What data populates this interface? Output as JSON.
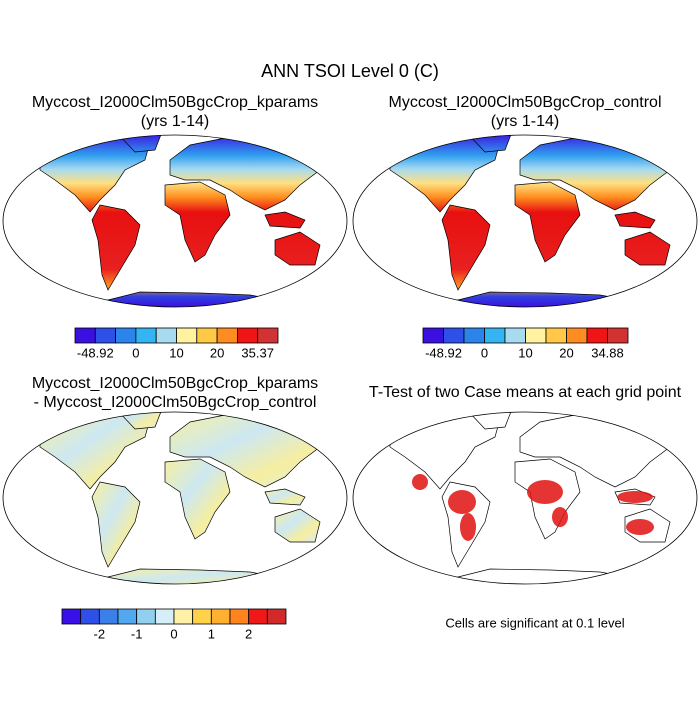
{
  "title": "ANN TSOI Level 0 (C)",
  "panels": [
    {
      "title": [
        "Myccost_I2000Clm50BgcCrop_kparams",
        "(yrs 1-14)"
      ],
      "colorbar": {
        "colors": [
          "#3a10e0",
          "#2f50e6",
          "#2a84ea",
          "#34b4f2",
          "#a8daf0",
          "#fff2a0",
          "#ffc846",
          "#ff8c22",
          "#f01414",
          "#d23232"
        ],
        "labels": [
          "-48.92",
          "0",
          "10",
          "20",
          "35.37"
        ]
      }
    },
    {
      "title": [
        "Myccost_I2000Clm50BgcCrop_control",
        "(yrs 1-14)"
      ],
      "colorbar": {
        "colors": [
          "#3a10e0",
          "#2f50e6",
          "#2a84ea",
          "#34b4f2",
          "#a8daf0",
          "#fff2a0",
          "#ffc846",
          "#ff8c22",
          "#f01414",
          "#d23232"
        ],
        "labels": [
          "-48.92",
          "0",
          "10",
          "20",
          "34.88"
        ]
      }
    },
    {
      "title": [
        "Myccost_I2000Clm50BgcCrop_kparams",
        "- Myccost_I2000Clm50BgcCrop_control"
      ],
      "colorbar": {
        "colors": [
          "#3a10e8",
          "#2e50e8",
          "#3a80e8",
          "#52a8f0",
          "#92d0f0",
          "#d6eef8",
          "#fff2a8",
          "#ffd24a",
          "#ffb030",
          "#ff8420",
          "#f01818",
          "#d02a2a"
        ],
        "labels": [
          "-2",
          "-1",
          "0",
          "1",
          "2"
        ]
      }
    },
    {
      "title": [
        "T-Test of two Case means at each grid point"
      ],
      "note": "Cells are significant at 0.1 level"
    }
  ]
}
